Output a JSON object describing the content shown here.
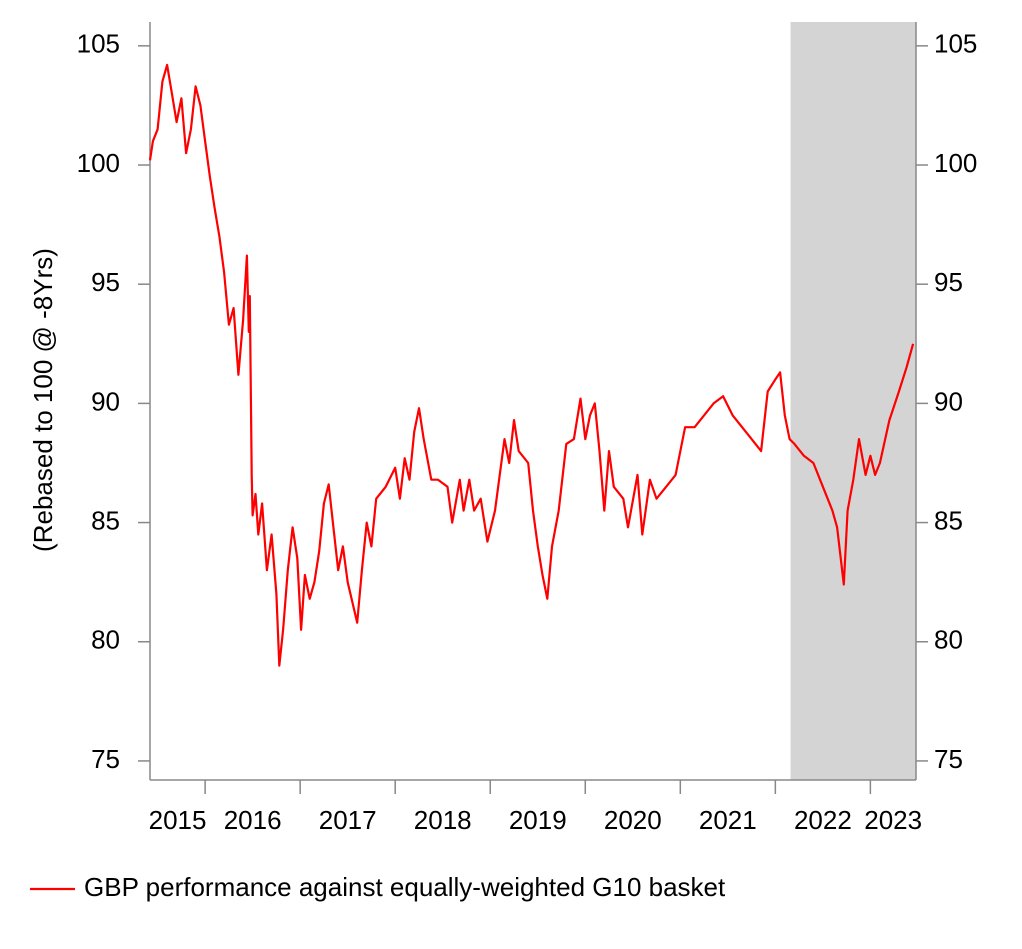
{
  "chart_data": {
    "type": "line",
    "ylabel": "(Rebased to 100 @ -8Yrs)",
    "xlim": [
      2015.42,
      2023.48
    ],
    "xticks": [
      2015,
      2016,
      2017,
      2018,
      2019,
      2020,
      2021,
      2022,
      2023
    ],
    "ylim": [
      74.2,
      106
    ],
    "yticks": [
      75,
      80,
      85,
      90,
      95,
      100,
      105
    ],
    "shade": [
      2022.16,
      2023.48
    ],
    "shade_color": "#d4d4d4",
    "legend": "bottom-left",
    "x": [
      2015.42,
      2015.45,
      2015.5,
      2015.55,
      2015.6,
      2015.65,
      2015.7,
      2015.75,
      2015.8,
      2015.85,
      2015.9,
      2015.95,
      2016.0,
      2016.05,
      2016.1,
      2016.15,
      2016.2,
      2016.25,
      2016.3,
      2016.35,
      2016.4,
      2016.44,
      2016.46,
      2016.47,
      2016.48,
      2016.49,
      2016.5,
      2016.53,
      2016.56,
      2016.6,
      2016.65,
      2016.7,
      2016.75,
      2016.78,
      2016.82,
      2016.87,
      2016.92,
      2016.97,
      2017.01,
      2017.05,
      2017.1,
      2017.15,
      2017.2,
      2017.25,
      2017.3,
      2017.35,
      2017.4,
      2017.45,
      2017.5,
      2017.6,
      2017.65,
      2017.7,
      2017.75,
      2017.8,
      2017.9,
      2018.0,
      2018.05,
      2018.1,
      2018.15,
      2018.2,
      2018.25,
      2018.3,
      2018.38,
      2018.45,
      2018.55,
      2018.6,
      2018.68,
      2018.72,
      2018.78,
      2018.83,
      2018.9,
      2018.97,
      2019.05,
      2019.15,
      2019.2,
      2019.25,
      2019.3,
      2019.4,
      2019.45,
      2019.5,
      2019.55,
      2019.6,
      2019.65,
      2019.72,
      2019.8,
      2019.88,
      2019.95,
      2020.0,
      2020.05,
      2020.1,
      2020.15,
      2020.2,
      2020.25,
      2020.3,
      2020.4,
      2020.45,
      2020.55,
      2020.6,
      2020.68,
      2020.75,
      2020.85,
      2020.95,
      2021.05,
      2021.15,
      2021.25,
      2021.35,
      2021.45,
      2021.55,
      2021.65,
      2021.75,
      2021.85,
      2021.92,
      2022.0,
      2022.05,
      2022.1,
      2022.15,
      2022.2,
      2022.3,
      2022.4,
      2022.5,
      2022.6,
      2022.65,
      2022.72,
      2022.76,
      2022.82,
      2022.88,
      2022.95,
      2023.0,
      2023.05,
      2023.1,
      2023.2,
      2023.3,
      2023.38,
      2023.45
    ],
    "series": [
      {
        "name": "GBP performance against equally-weighted G10 basket",
        "color": "#ff0000",
        "values": [
          100.2,
          101.0,
          101.5,
          103.5,
          104.2,
          103.0,
          101.8,
          102.8,
          100.5,
          101.5,
          103.3,
          102.5,
          101.0,
          99.5,
          98.2,
          97.0,
          95.5,
          93.3,
          94.0,
          91.2,
          93.5,
          96.2,
          93.0,
          94.5,
          91.0,
          87.0,
          85.3,
          86.2,
          84.5,
          85.8,
          83.0,
          84.5,
          82.0,
          79.0,
          80.5,
          83.0,
          84.8,
          83.5,
          80.5,
          82.8,
          81.8,
          82.5,
          83.8,
          85.8,
          86.6,
          84.8,
          83.0,
          84.0,
          82.5,
          80.8,
          83.0,
          85.0,
          84.0,
          86.0,
          86.5,
          87.3,
          86.0,
          87.7,
          86.8,
          88.8,
          89.8,
          88.5,
          86.8,
          86.8,
          86.5,
          85.0,
          86.8,
          85.5,
          86.8,
          85.5,
          86.0,
          84.2,
          85.5,
          88.5,
          87.5,
          89.3,
          88.0,
          87.5,
          85.5,
          84.0,
          82.8,
          81.8,
          84.0,
          85.5,
          88.3,
          88.5,
          90.2,
          88.5,
          89.5,
          90.0,
          88.0,
          85.5,
          88.0,
          86.5,
          86.0,
          84.8,
          87.0,
          84.5,
          86.8,
          86.0,
          86.5,
          87.0,
          89.0,
          89.0,
          89.5,
          90.0,
          90.3,
          89.5,
          89.0,
          88.5,
          88.0,
          90.5,
          91.0,
          91.3,
          89.5,
          88.5,
          88.3,
          87.8,
          87.5,
          86.5,
          85.5,
          84.8,
          82.4,
          85.5,
          86.8,
          88.5,
          87.0,
          87.8,
          87.0,
          87.5,
          89.3,
          90.5,
          91.5,
          92.5
        ]
      }
    ]
  }
}
